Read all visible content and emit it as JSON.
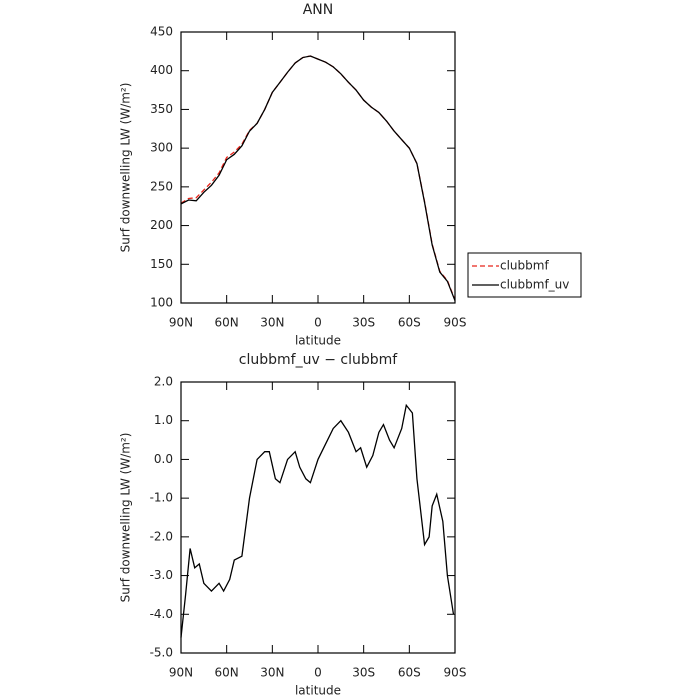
{
  "chart_data": [
    {
      "type": "line",
      "title": "ANN",
      "x_label": "latitude",
      "y_label": "Surf downwelling LW (W/m²)",
      "x": [
        90,
        85,
        80,
        75,
        70,
        65,
        60,
        55,
        50,
        45,
        40,
        35,
        30,
        25,
        20,
        15,
        10,
        5,
        0,
        -5,
        -10,
        -15,
        -20,
        -25,
        -30,
        -35,
        -40,
        -45,
        -50,
        -55,
        -60,
        -65,
        -70,
        -75,
        -80,
        -85,
        -90
      ],
      "series": [
        {
          "name": "clubbmf",
          "color": "#e8251b",
          "dash": "dashed",
          "values": [
            229,
            235,
            236,
            246,
            256,
            268,
            288,
            295,
            305,
            323,
            332,
            350,
            372,
            385,
            398,
            410,
            417,
            419,
            415,
            411,
            405,
            396,
            385,
            375,
            362,
            353,
            346,
            335,
            322,
            311,
            300,
            280,
            231,
            176,
            141,
            129,
            104
          ]
        },
        {
          "name": "clubbmf_uv",
          "color": "#000000",
          "dash": "solid",
          "values": [
            228,
            233,
            232,
            243,
            252,
            265,
            285,
            292,
            303,
            322,
            332,
            350,
            372,
            385,
            398,
            410,
            417,
            419,
            415,
            411,
            405,
            396,
            385,
            375,
            362,
            353,
            346,
            335,
            322,
            311,
            300,
            280,
            230,
            175,
            140,
            128,
            103
          ]
        }
      ],
      "xlim": [
        90,
        -90
      ],
      "xticks": [
        {
          "value": 90,
          "label": "90N"
        },
        {
          "value": 60,
          "label": "60N"
        },
        {
          "value": 30,
          "label": "30N"
        },
        0,
        {
          "value": -30,
          "label": "30S"
        },
        {
          "value": -60,
          "label": "60S"
        },
        {
          "value": -90,
          "label": "90S"
        }
      ],
      "ylim": [
        100,
        450
      ],
      "yticks": [
        100,
        150,
        200,
        250,
        300,
        350,
        400,
        450
      ],
      "legend": "right"
    },
    {
      "type": "line",
      "title": "clubbmf_uv − clubbmf",
      "x_label": "latitude",
      "y_label": "Surf downwelling LW (W/m²)",
      "x": [
        90,
        87,
        84,
        81,
        78,
        75,
        70,
        65,
        62,
        58,
        55,
        50,
        45,
        40,
        35,
        32,
        28,
        25,
        20,
        15,
        12,
        8,
        5,
        0,
        -5,
        -10,
        -15,
        -20,
        -25,
        -28,
        -32,
        -36,
        -40,
        -43,
        -47,
        -50,
        -55,
        -58,
        -62,
        -65,
        -70,
        -73,
        -75,
        -78,
        -82,
        -85,
        -89
      ],
      "values": [
        -4.6,
        -3.5,
        -2.3,
        -2.8,
        -2.7,
        -3.2,
        -3.4,
        -3.2,
        -3.4,
        -3.1,
        -2.6,
        -2.5,
        -1.0,
        0.0,
        0.2,
        0.2,
        -0.5,
        -0.6,
        0.0,
        0.2,
        -0.2,
        -0.5,
        -0.6,
        0.0,
        0.4,
        0.8,
        1.0,
        0.7,
        0.2,
        0.3,
        -0.2,
        0.1,
        0.7,
        0.9,
        0.5,
        0.3,
        0.8,
        1.4,
        1.2,
        -0.5,
        -2.2,
        -2.0,
        -1.2,
        -0.9,
        -1.6,
        -3.0,
        -4.0
      ],
      "color": "#000000",
      "xlim": [
        90,
        -90
      ],
      "xticks": [
        {
          "value": 90,
          "label": "90N"
        },
        {
          "value": 60,
          "label": "60N"
        },
        {
          "value": 30,
          "label": "30N"
        },
        0,
        {
          "value": -30,
          "label": "30S"
        },
        {
          "value": -60,
          "label": "60S"
        },
        {
          "value": -90,
          "label": "90S"
        }
      ],
      "ylim": [
        -5,
        2
      ],
      "yticks": [
        {
          "value": -5,
          "label": "-5.0"
        },
        {
          "value": -4,
          "label": "-4.0"
        },
        {
          "value": -3,
          "label": "-3.0"
        },
        {
          "value": -2,
          "label": "-2.0"
        },
        {
          "value": -1,
          "label": "-1.0"
        },
        {
          "value": 0,
          "label": "0.0"
        },
        {
          "value": 1,
          "label": "1.0"
        },
        {
          "value": 2,
          "label": "2.0"
        }
      ]
    }
  ]
}
